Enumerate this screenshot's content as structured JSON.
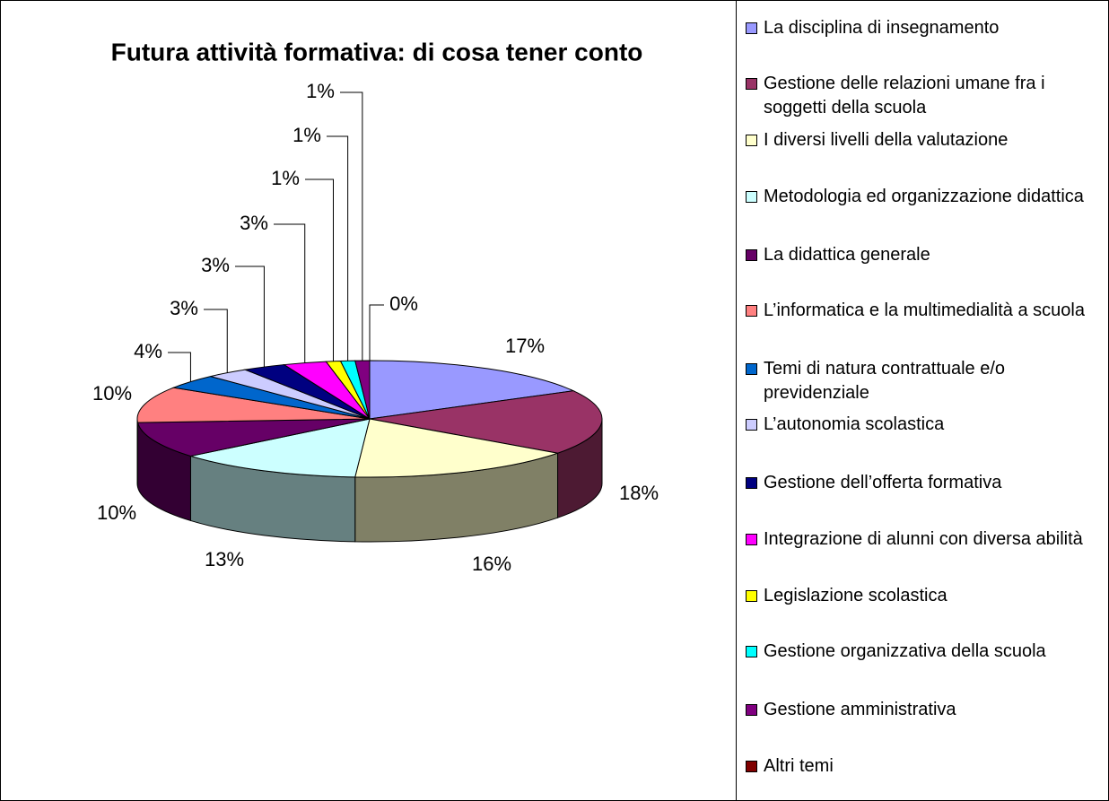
{
  "chart_data": {
    "type": "pie3d",
    "title": "Futura attività formativa: di cosa tener conto",
    "categories": [
      "La disciplina di insegnamento",
      "Gestione delle relazioni umane fra i soggetti della scuola",
      "I diversi livelli della valutazione",
      "Metodologia ed organizzazione didattica",
      "La didattica generale",
      "L’informatica e la multimedialità a scuola",
      "Temi di natura contrattuale e/o previdenziale",
      "L’autonomia scolastica",
      "Gestione dell’offerta formativa",
      "Integrazione di alunni con diversa abilità",
      "Legislazione scolastica",
      "Gestione organizzativa della scuola",
      "Gestione amministrativa",
      "Altri temi"
    ],
    "values": [
      17,
      18,
      16,
      13,
      10,
      10,
      4,
      3,
      3,
      3,
      1,
      1,
      1,
      0
    ],
    "value_labels": [
      "17%",
      "18%",
      "16%",
      "13%",
      "10%",
      "10%",
      "4%",
      "3%",
      "3%",
      "3%",
      "1%",
      "1%",
      "1%",
      "0%"
    ],
    "colors": [
      "#9999ff",
      "#993366",
      "#ffffcc",
      "#ccffff",
      "#660066",
      "#ff8080",
      "#0066cc",
      "#ccccff",
      "#000080",
      "#ff00ff",
      "#ffff00",
      "#00ffff",
      "#800080",
      "#800000"
    ],
    "legend": "right"
  }
}
